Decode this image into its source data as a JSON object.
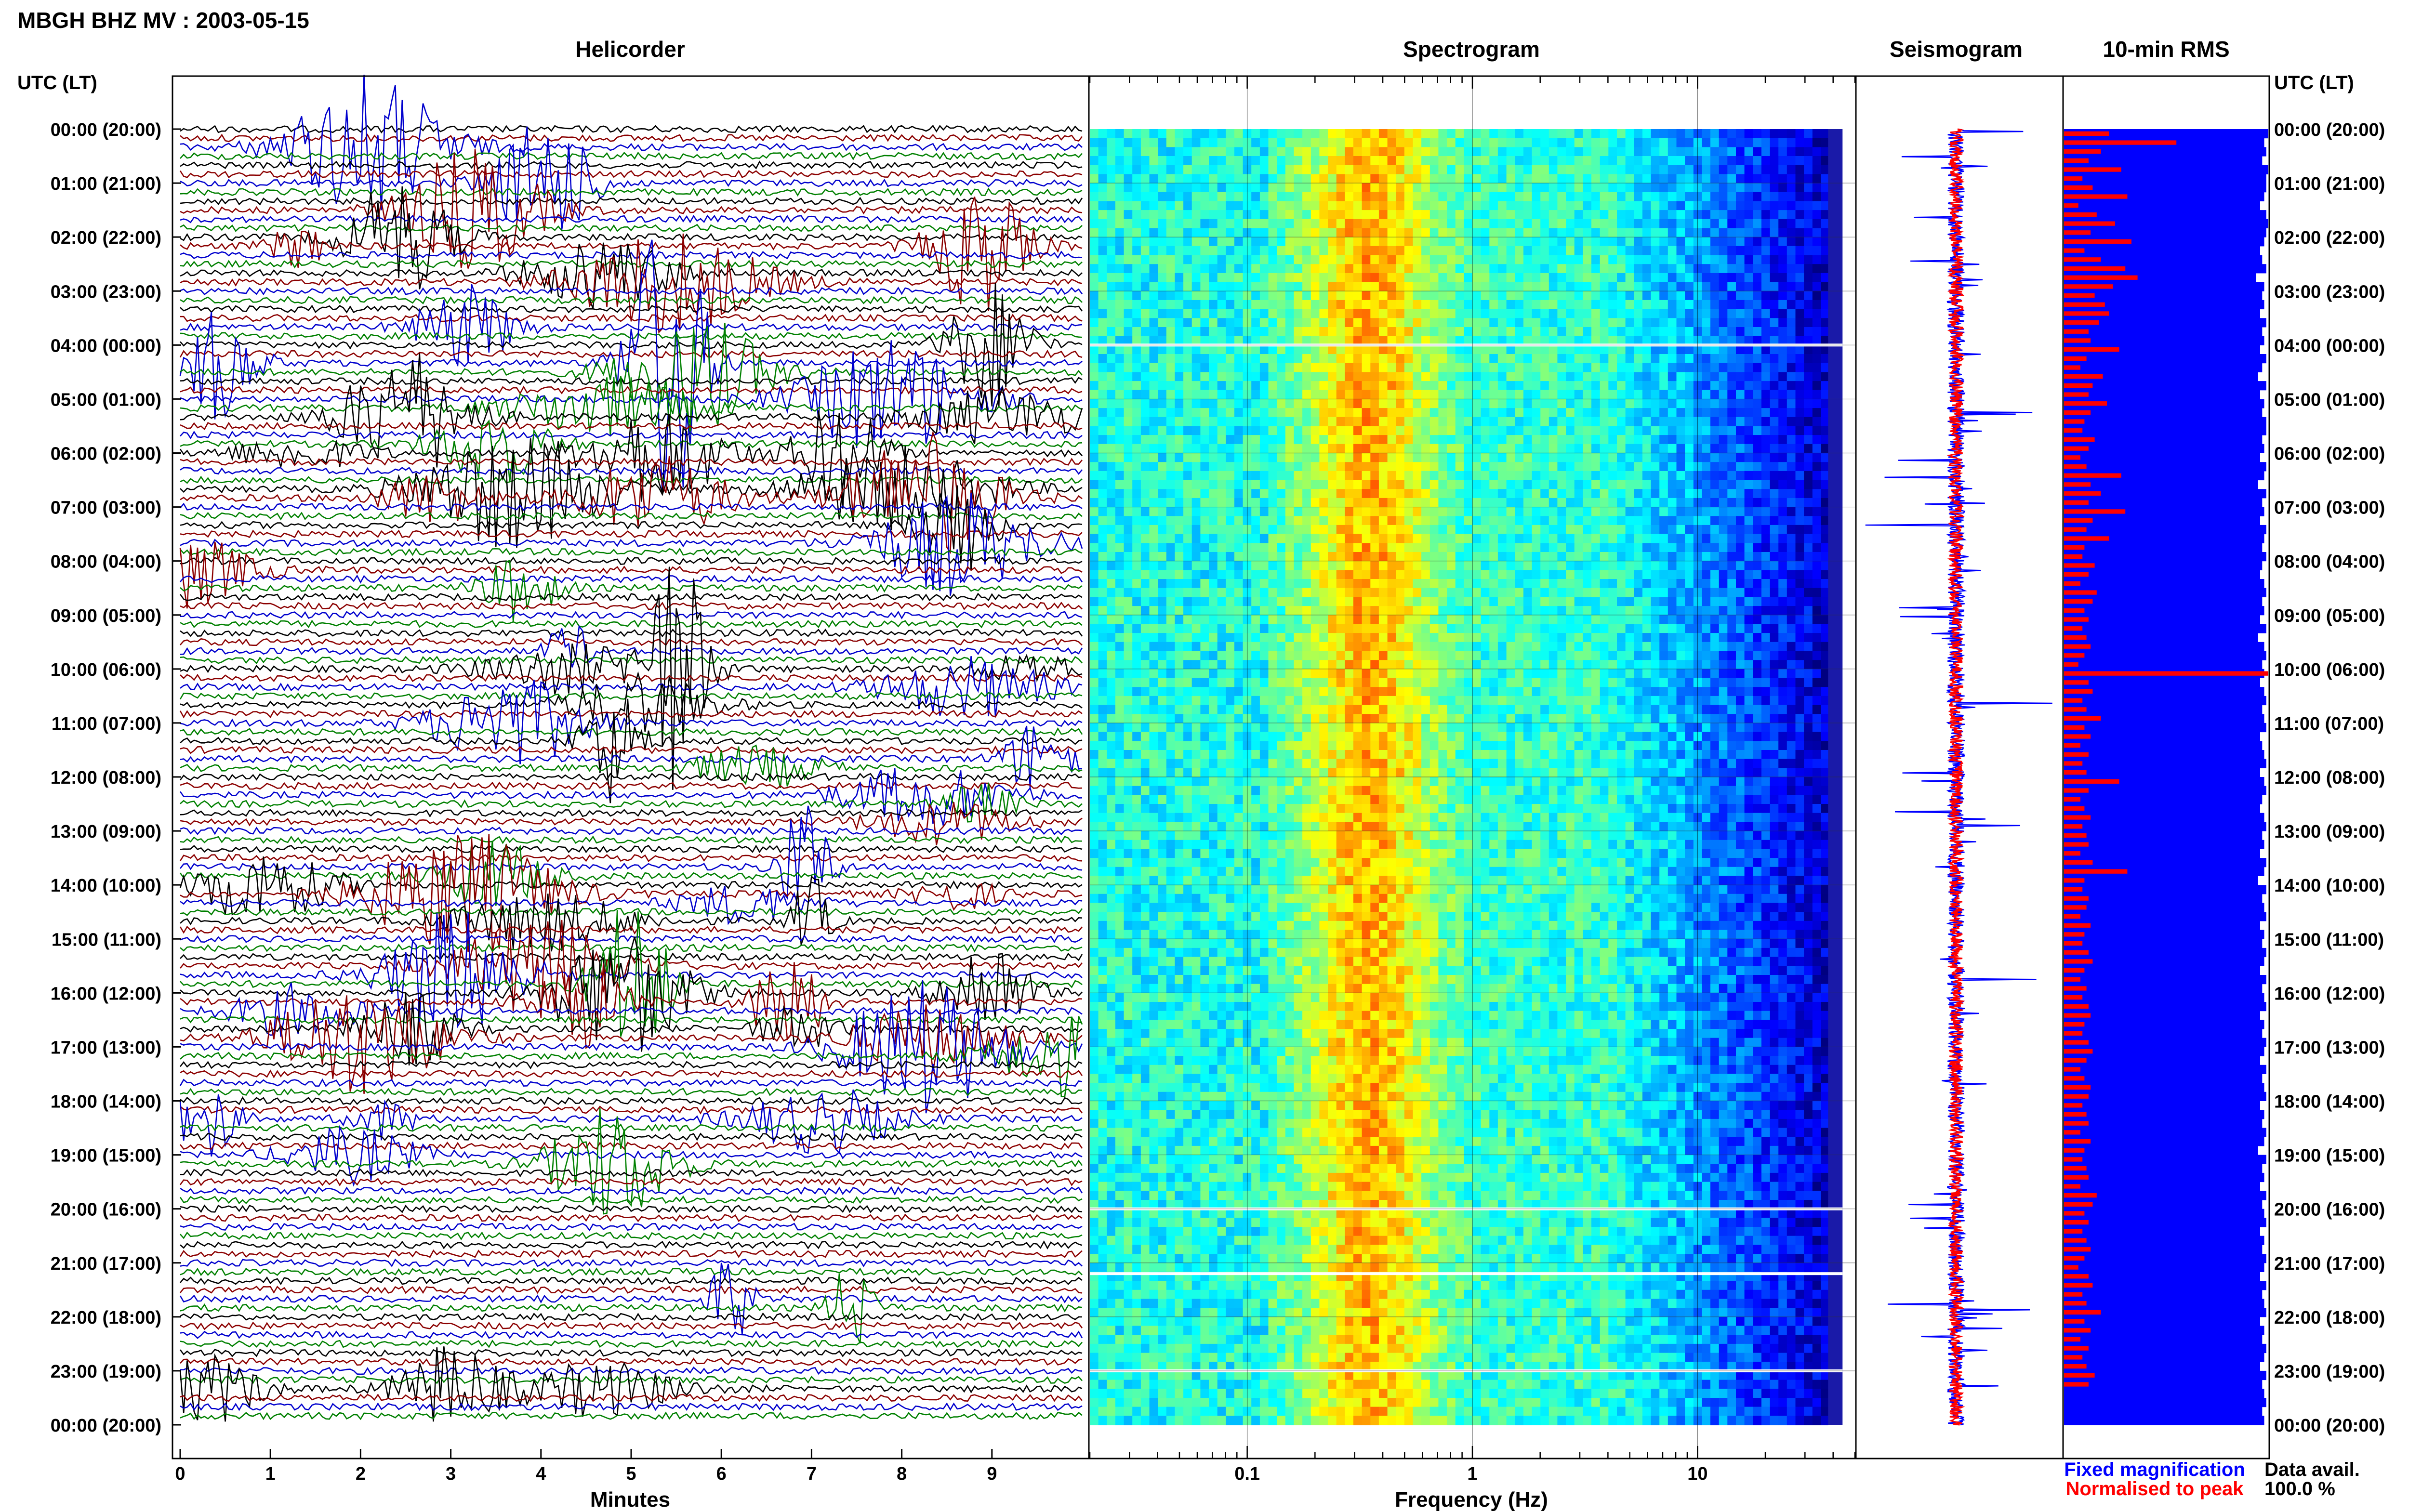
{
  "header": {
    "title": "MBGH BHZ MV : 2003-05-15"
  },
  "panels": {
    "helicorder": "Helicorder",
    "spectrogram": "Spectrogram",
    "seismogram": "Seismogram",
    "rms": "10-min RMS"
  },
  "time_axis": {
    "label": "UTC (LT)",
    "ticks": [
      "00:00 (20:00)",
      "01:00 (21:00)",
      "02:00 (22:00)",
      "03:00 (23:00)",
      "04:00 (00:00)",
      "05:00 (01:00)",
      "06:00 (02:00)",
      "07:00 (03:00)",
      "08:00 (04:00)",
      "09:00 (05:00)",
      "10:00 (06:00)",
      "11:00 (07:00)",
      "12:00 (08:00)",
      "13:00 (09:00)",
      "14:00 (10:00)",
      "15:00 (11:00)",
      "16:00 (12:00)",
      "17:00 (13:00)",
      "18:00 (14:00)",
      "19:00 (15:00)",
      "20:00 (16:00)",
      "21:00 (17:00)",
      "22:00 (18:00)",
      "23:00 (19:00)",
      "00:00 (20:00)"
    ]
  },
  "helicorder_axis": {
    "xlabel": "Minutes",
    "ticks": [
      "0",
      "1",
      "2",
      "3",
      "4",
      "5",
      "6",
      "7",
      "8",
      "9"
    ],
    "trace_colors": [
      "#000000",
      "#8b0000",
      "#0000cd",
      "#008000"
    ]
  },
  "spectrogram_axis": {
    "xlabel": "Frequency (Hz)",
    "ticks": [
      "0.1",
      "1",
      "10"
    ],
    "scale": "log",
    "xlim": [
      0.02,
      50
    ]
  },
  "legend": {
    "fixed": "Fixed magnification",
    "normalised": "Normalised to peak",
    "fixed_color": "#0000ff",
    "normalised_color": "#ff0000"
  },
  "availability": {
    "label": "Data avail.",
    "value": "100.0 %"
  },
  "chart_data": [
    {
      "type": "line",
      "title": "Helicorder",
      "xlabel": "Minutes",
      "xlim": [
        0,
        10
      ],
      "ylabel": "UTC (LT)",
      "ylim": [
        "00:00",
        "24:00"
      ],
      "rows": 144,
      "row_minutes": 10,
      "colors": [
        "#000000",
        "#8b0000",
        "#0000cd",
        "#008000"
      ]
    },
    {
      "type": "heatmap",
      "title": "Spectrogram",
      "xlabel": "Frequency (Hz)",
      "xscale": "log",
      "xlim": [
        0.02,
        50
      ],
      "ylim": [
        "00:00",
        "24:00"
      ],
      "colormap": "jet",
      "peak_band_hz": [
        0.2,
        0.6
      ],
      "gaps_utc_hours": [
        4.0,
        20.0,
        21.2,
        23.0
      ]
    },
    {
      "type": "line",
      "title": "Seismogram",
      "ylim": [
        "00:00",
        "24:00"
      ],
      "series": [
        {
          "name": "Fixed magnification",
          "color": "#0000ff"
        },
        {
          "name": "Normalised to peak",
          "color": "#ff0000"
        }
      ]
    },
    {
      "type": "bar",
      "title": "10-min RMS",
      "orientation": "horizontal",
      "ylim": [
        "00:00",
        "24:00"
      ],
      "series": [
        {
          "name": "Fixed magnification",
          "color": "#0000ff",
          "values": [
            1.0,
            0.98,
            0.99,
            0.97,
            1.0,
            0.99,
            0.99,
            0.98,
            0.96,
            0.99,
            1.0,
            0.99,
            0.98,
            0.96,
            0.97,
            0.99,
            0.94,
            0.98,
            0.97,
            0.98,
            0.96,
            0.99,
            0.97,
            0.98,
            0.96,
            0.99,
            0.97,
            0.95,
            0.99,
            0.96,
            0.98,
            0.97,
            0.99,
            0.99,
            0.97,
            0.98,
            0.96,
            0.99,
            0.98,
            0.95,
            0.99,
            0.97,
            0.98,
            0.96,
            0.99,
            0.98,
            0.97,
            0.99,
            0.97,
            0.96,
            0.98,
            0.99,
            0.97,
            0.98,
            0.96,
            0.99,
            0.95,
            0.98,
            0.99,
            0.97,
            0.98,
            0.96,
            0.98,
            0.99,
            0.97,
            0.98,
            0.99,
            0.96,
            0.97,
            0.98,
            0.99,
            0.96,
            0.98,
            0.99,
            0.97,
            0.96,
            0.98,
            0.99,
            0.97,
            0.98,
            0.96,
            0.99,
            0.98,
            0.95,
            0.99,
            0.97,
            0.98,
            0.99,
            0.96,
            0.98,
            0.97,
            0.99,
            0.98,
            0.96,
            0.99,
            0.97,
            0.98,
            0.99,
            0.96,
            0.98,
            0.97,
            0.99,
            0.98,
            0.96,
            0.99,
            0.97,
            0.98,
            0.99,
            0.96,
            0.98,
            0.97,
            0.99,
            0.98,
            0.95,
            0.99,
            0.97,
            0.98,
            0.96,
            0.99,
            0.97,
            0.98,
            0.99,
            0.96,
            0.98,
            0.97,
            0.99,
            0.98,
            0.96,
            0.99,
            0.97,
            0.98,
            0.99,
            0.96,
            0.98,
            0.97,
            0.99,
            0.98,
            0.96,
            0.99,
            0.97,
            0.98,
            0.99,
            0.97,
            0.98
          ]
        },
        {
          "name": "Normalised to peak",
          "color": "#ff0000",
          "values": [
            0.22,
            0.55,
            0.18,
            0.12,
            0.28,
            0.09,
            0.14,
            0.31,
            0.07,
            0.16,
            0.25,
            0.13,
            0.33,
            0.1,
            0.18,
            0.3,
            0.36,
            0.24,
            0.15,
            0.2,
            0.22,
            0.17,
            0.12,
            0.13,
            0.27,
            0.11,
            0.08,
            0.19,
            0.14,
            0.12,
            0.21,
            0.13,
            0.1,
            0.09,
            0.15,
            0.12,
            0.08,
            0.11,
            0.28,
            0.13,
            0.18,
            0.12,
            0.3,
            0.14,
            0.11,
            0.22,
            0.1,
            0.09,
            0.15,
            0.12,
            0.08,
            0.16,
            0.14,
            0.1,
            0.12,
            0.09,
            0.11,
            0.13,
            0.1,
            0.07,
            1.0,
            0.12,
            0.14,
            0.09,
            0.11,
            0.18,
            0.1,
            0.13,
            0.08,
            0.12,
            0.09,
            0.11,
            0.27,
            0.12,
            0.08,
            0.1,
            0.13,
            0.09,
            0.11,
            0.12,
            0.08,
            0.14,
            0.31,
            0.1,
            0.09,
            0.12,
            0.11,
            0.08,
            0.13,
            0.1,
            0.09,
            0.12,
            0.14,
            0.1,
            0.08,
            0.11,
            0.09,
            0.12,
            0.13,
            0.1,
            0.09,
            0.12,
            0.14,
            0.11,
            0.08,
            0.1,
            0.13,
            0.12,
            0.09,
            0.11,
            0.12,
            0.08,
            0.13,
            0.1,
            0.09,
            0.11,
            0.12,
            0.08,
            0.16,
            0.14,
            0.1,
            0.12,
            0.09,
            0.11,
            0.13,
            0.1,
            0.07,
            0.12,
            0.14,
            0.09,
            0.11,
            0.18,
            0.1,
            0.13,
            0.08,
            0.12,
            0.09,
            0.11,
            0.15,
            0.12
          ]
        }
      ]
    }
  ]
}
